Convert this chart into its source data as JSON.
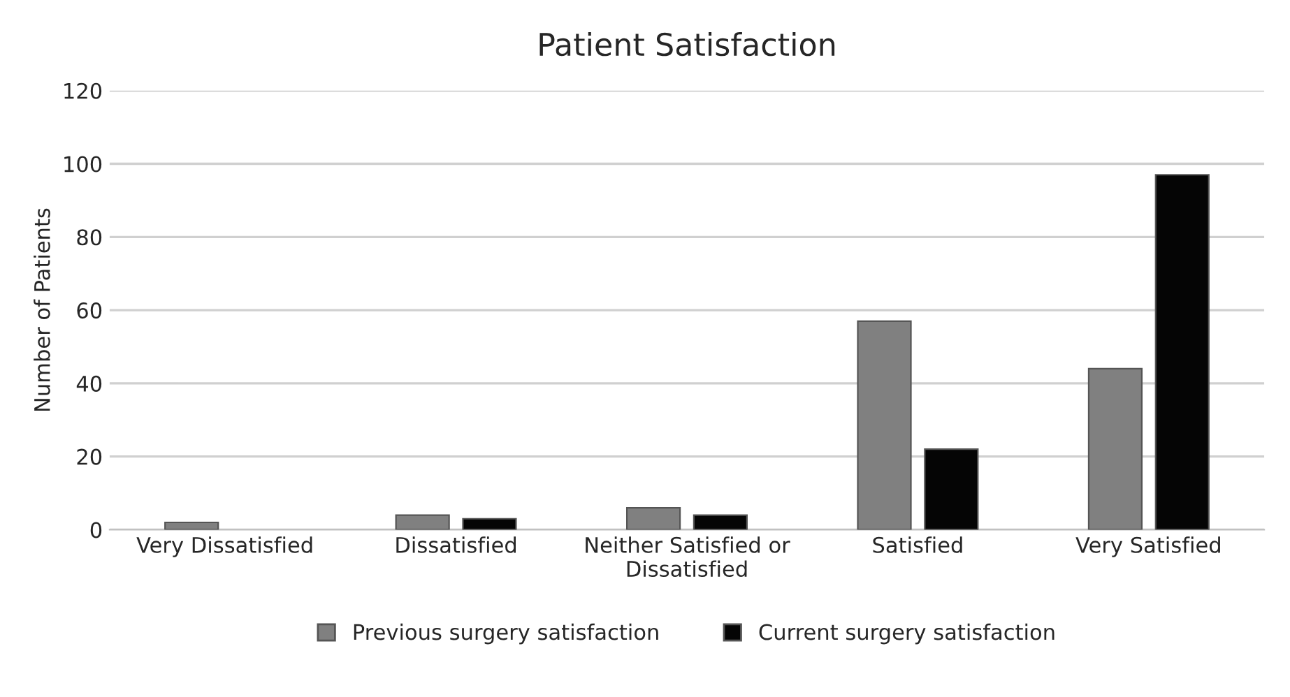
{
  "chart_data": {
    "type": "bar",
    "title": "Patient Satisfaction",
    "ylabel": "Number of Patients",
    "categories": [
      "Very Dissatisfied",
      "Dissatisfied",
      "Neither Satisfied or\nDissatisfied",
      "Satisfied",
      "Very Satisfied"
    ],
    "series": [
      {
        "name": "Previous surgery satisfaction",
        "color": "#808080",
        "values": [
          2,
          4,
          6,
          57,
          44
        ]
      },
      {
        "name": "Current surgery satisfaction",
        "color": "#050505",
        "values": [
          0,
          3,
          4,
          22,
          97
        ]
      }
    ],
    "ylim": [
      0,
      120
    ],
    "yticks": [
      0,
      20,
      40,
      60,
      80,
      100,
      120
    ],
    "grid": "y",
    "legend": "bottom"
  }
}
